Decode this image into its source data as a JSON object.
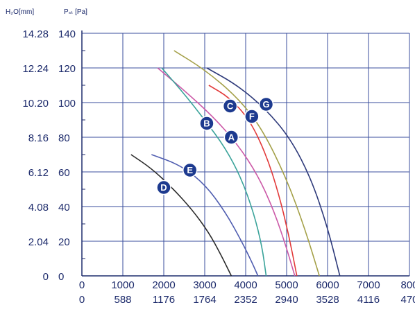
{
  "chart_data": {
    "type": "line",
    "y_left_unit": "H₂O[mm]",
    "y_right_unit": "Pₛₜ [Pa]",
    "y_left_ticks": [
      "14.28",
      "12.24",
      "10.20",
      "8.16",
      "6.12",
      "4.08",
      "2.04",
      "0"
    ],
    "y_right_ticks": [
      "140",
      "120",
      "100",
      "80",
      "60",
      "40",
      "20",
      "0"
    ],
    "x_ticks_top": [
      "0",
      "1000",
      "2000",
      "3000",
      "4000",
      "5000",
      "6000",
      "7000",
      "800"
    ],
    "x_ticks_bottom": [
      "0",
      "588",
      "1176",
      "1764",
      "2352",
      "2940",
      "3528",
      "4116",
      "470"
    ],
    "xlim": [
      0,
      8000
    ],
    "ylim": [
      0,
      140
    ],
    "grid": true,
    "series": [
      {
        "name": "A",
        "color": "#cc5aa8",
        "x": [
          1850,
          2500,
          3200,
          3800,
          4300,
          4700,
          5000,
          5200
        ],
        "y": [
          120,
          107,
          92,
          76,
          58,
          37,
          16,
          0
        ],
        "label_at": [
          3650,
          80
        ]
      },
      {
        "name": "B",
        "color": "#3aa39a",
        "x": [
          1950,
          2500,
          3000,
          3500,
          3900,
          4200,
          4400,
          4500
        ],
        "y": [
          120,
          105,
          90,
          74,
          56,
          36,
          17,
          0
        ],
        "label_at": [
          3050,
          88
        ]
      },
      {
        "name": "C",
        "color": "#e23a3a",
        "x": [
          3100,
          3600,
          4100,
          4500,
          4800,
          5050,
          5250
        ],
        "y": [
          110,
          103,
          90,
          70,
          48,
          24,
          0
        ],
        "label_at": [
          3620,
          98
        ]
      },
      {
        "name": "D",
        "color": "#2b2b2b",
        "x": [
          1200,
          1700,
          2200,
          2700,
          3100,
          3400,
          3650
        ],
        "y": [
          70,
          62,
          51,
          38,
          25,
          12,
          0
        ],
        "label_at": [
          2000,
          51
        ]
      },
      {
        "name": "E",
        "color": "#4f5db0",
        "x": [
          1700,
          2400,
          3000,
          3500,
          3900,
          4150,
          4300
        ],
        "y": [
          70,
          64,
          53,
          37,
          20,
          8,
          0
        ],
        "label_at": [
          2640,
          61
        ]
      },
      {
        "name": "F",
        "color": "#a4a048",
        "x": [
          2250,
          3000,
          3800,
          4400,
          5000,
          5450,
          5800
        ],
        "y": [
          130,
          119,
          103,
          85,
          56,
          27,
          0
        ],
        "label_at": [
          4150,
          92
        ]
      },
      {
        "name": "G",
        "color": "#2e3a7a",
        "x": [
          3050,
          3800,
          4500,
          5100,
          5600,
          6000,
          6300
        ],
        "y": [
          120,
          110,
          96,
          79,
          56,
          28,
          0
        ],
        "label_at": [
          4500,
          99
        ]
      }
    ]
  },
  "style": {
    "axis_color": "#1c2a6b",
    "grid_color": "#3a4d9c",
    "badge_fill": "#1d3a8f"
  }
}
